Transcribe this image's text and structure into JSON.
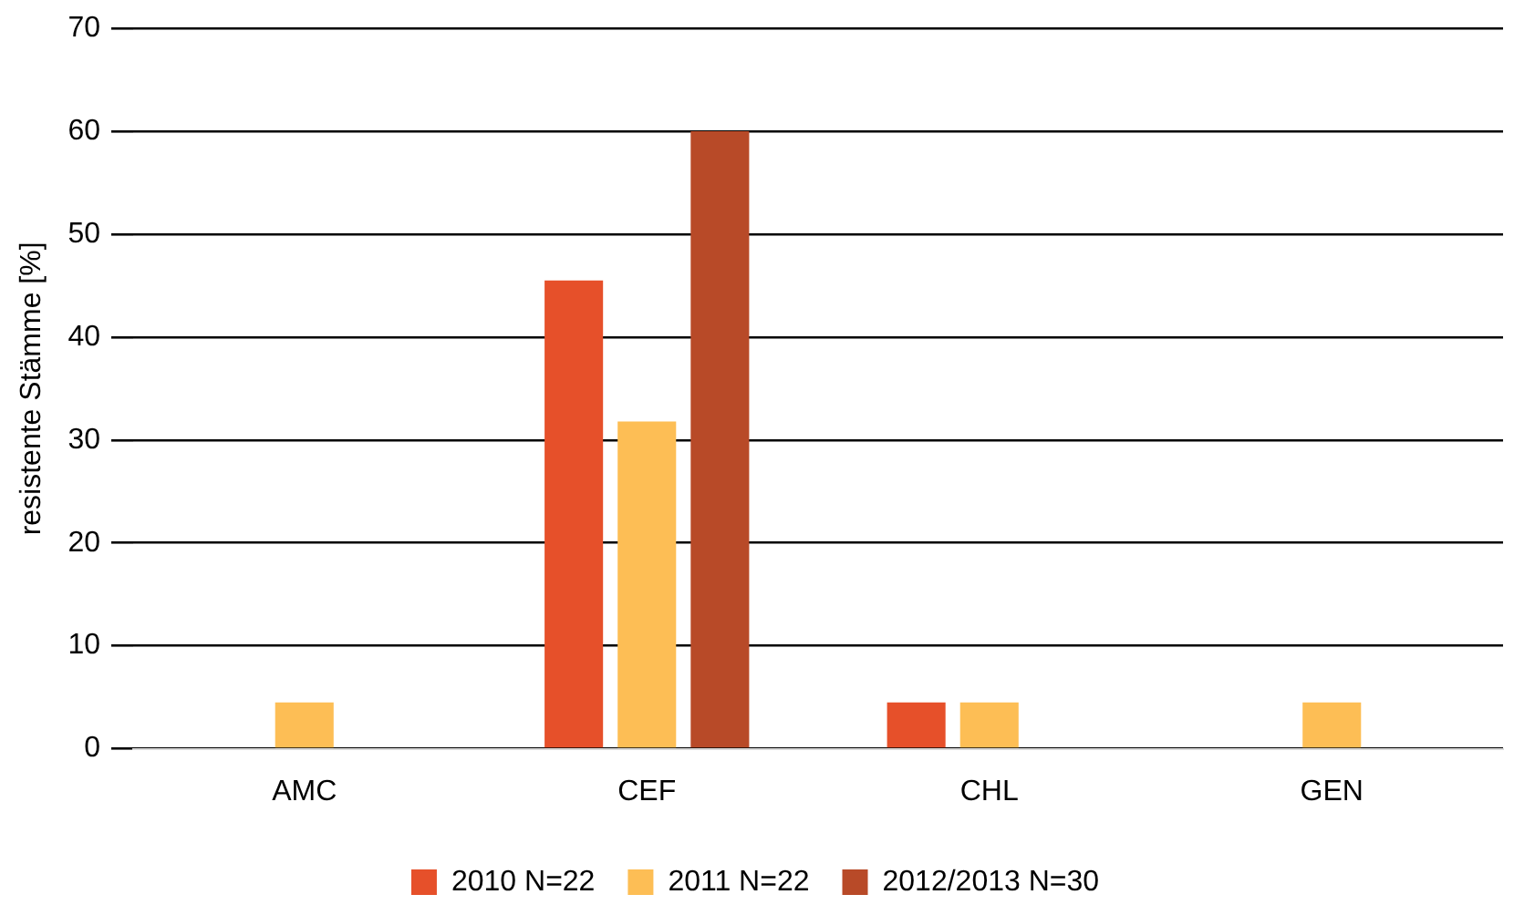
{
  "chart_data": {
    "type": "bar",
    "ylabel": "resistente Stämme [%]",
    "categories": [
      "AMC",
      "CEF",
      "CHL",
      "GEN"
    ],
    "series": [
      {
        "name": "2010 N=22",
        "color": "#e6502a",
        "values": [
          0,
          45.5,
          4.5,
          0
        ]
      },
      {
        "name": "2011 N=22",
        "color": "#fdbe55",
        "values": [
          4.5,
          31.8,
          4.5,
          4.5
        ]
      },
      {
        "name": "2012/2013 N=30",
        "color": "#b84a28",
        "values": [
          0,
          60,
          0,
          0
        ]
      }
    ],
    "ylim": [
      0,
      70
    ],
    "yticks": [
      0,
      10,
      20,
      30,
      40,
      50,
      60,
      70
    ],
    "grid": "y",
    "legend": "bottom"
  }
}
